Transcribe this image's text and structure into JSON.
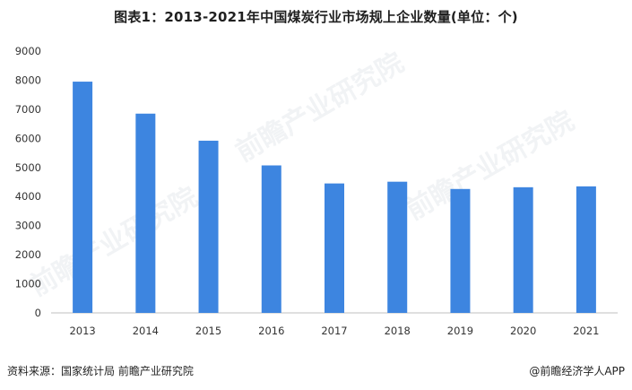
{
  "title": "图表1：2013-2021年中国煤炭行业市场规上企业数量(单位：个)",
  "chart_data": {
    "type": "bar",
    "title": "图表1：2013-2021年中国煤炭行业市场规上企业数量(单位：个)",
    "categories": [
      "2013",
      "2014",
      "2015",
      "2016",
      "2017",
      "2018",
      "2019",
      "2020",
      "2021"
    ],
    "values": [
      7950,
      6850,
      5920,
      5070,
      4450,
      4510,
      4260,
      4320,
      4350
    ],
    "ylim": [
      0,
      9000
    ],
    "yticks": [
      0,
      1000,
      2000,
      3000,
      4000,
      5000,
      6000,
      7000,
      8000,
      9000
    ],
    "xlabel": "",
    "ylabel": "",
    "bar_color": "#3d85e0",
    "grid": false,
    "legend": "none"
  },
  "footer": {
    "source": "资料来源：国家统计局 前瞻产业研究院",
    "brand": "@前瞻经济学人APP"
  },
  "watermark": "前瞻产业研究院"
}
